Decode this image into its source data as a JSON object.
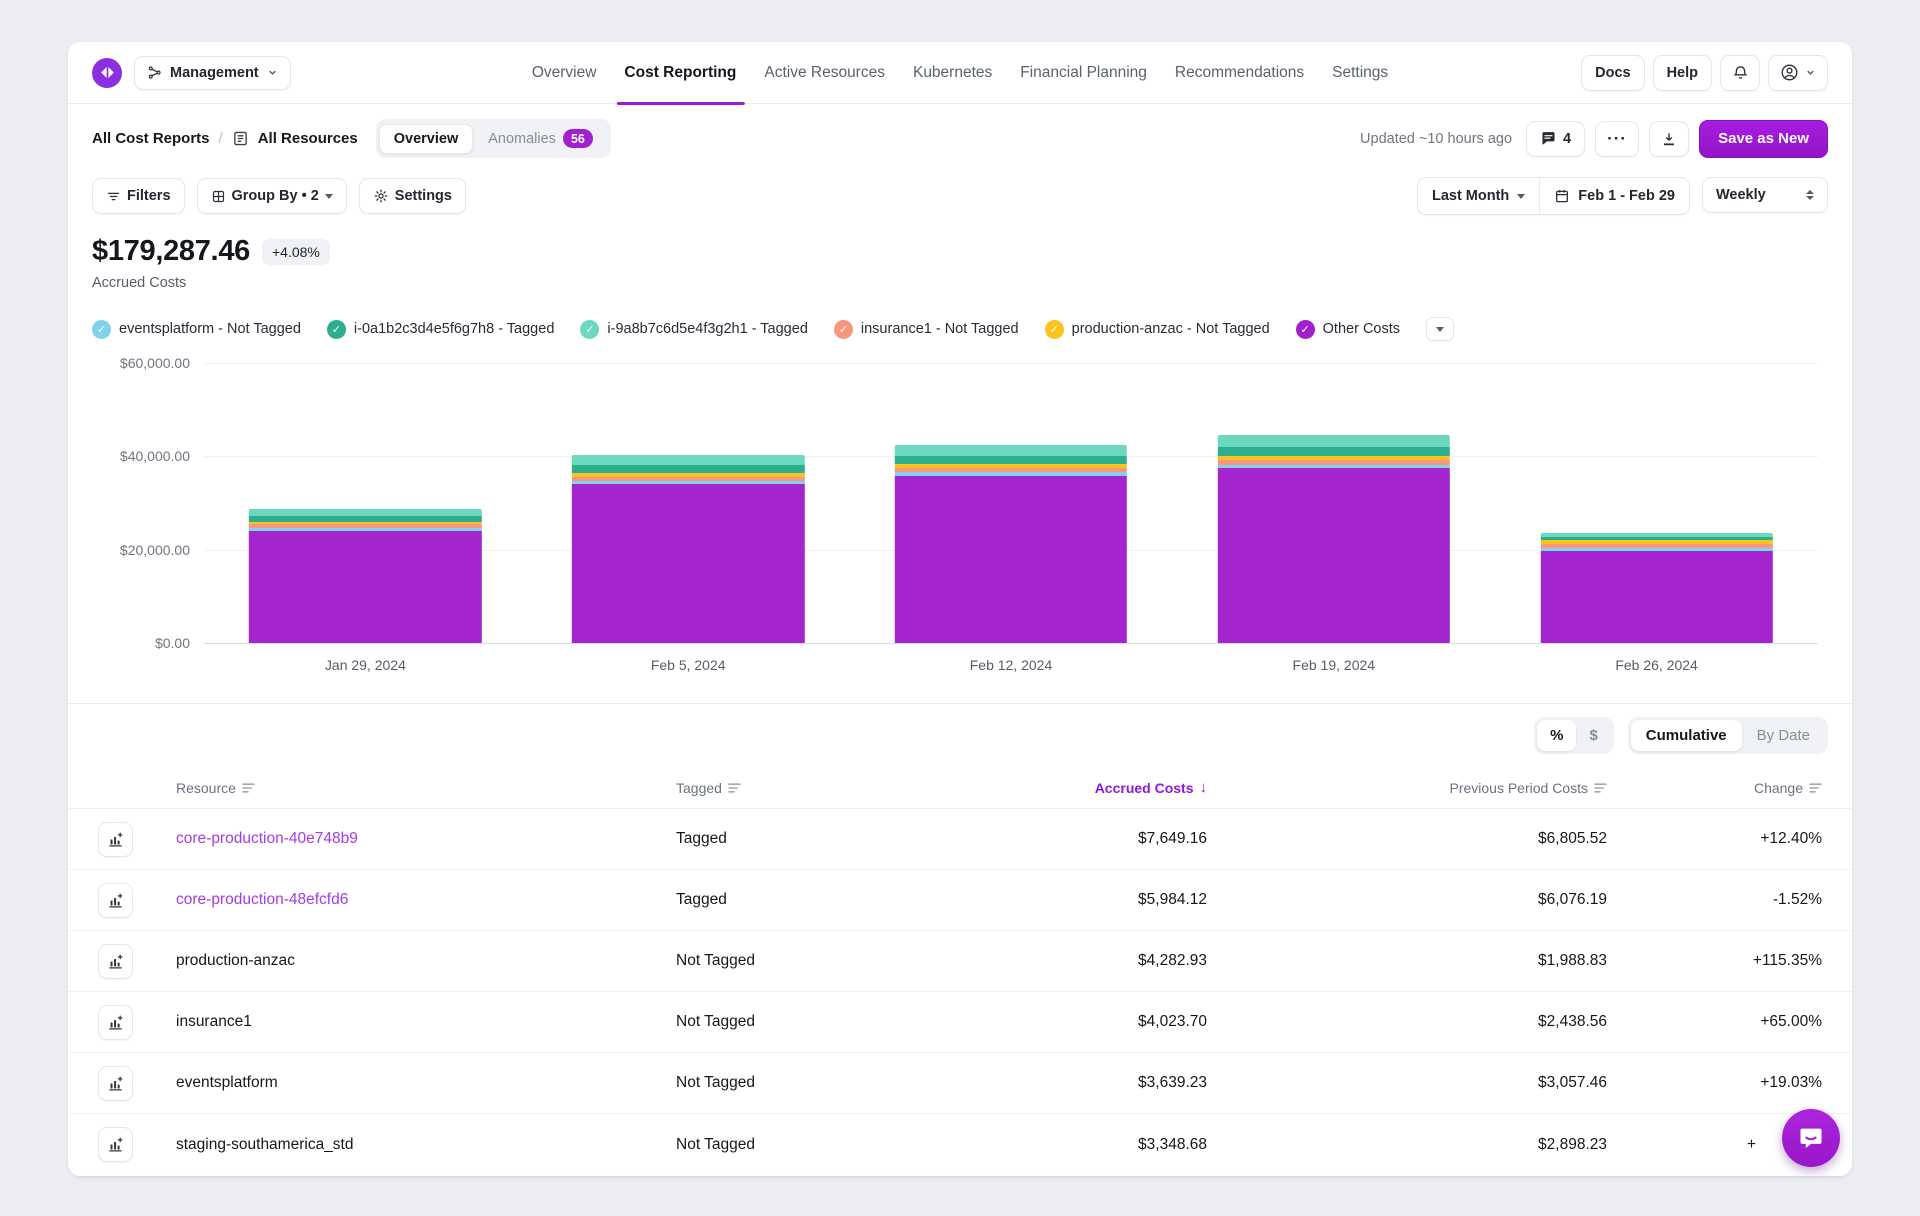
{
  "colors": {
    "accent": "#9C1BD9",
    "link": "#A43BE3",
    "badge": "#A21FD0",
    "logo": "#8C2FE0",
    "intercom": "#A51CD6"
  },
  "glyphs": {
    "check": "✓",
    "ellipsis": "···",
    "down_arrow": "↓",
    "slash": "/"
  },
  "header": {
    "workspace": "Management",
    "docs_label": "Docs",
    "help_label": "Help"
  },
  "nav": {
    "tabs": [
      {
        "label": "Overview",
        "active": false
      },
      {
        "label": "Cost Reporting",
        "active": true
      },
      {
        "label": "Active Resources",
        "active": false
      },
      {
        "label": "Kubernetes",
        "active": false
      },
      {
        "label": "Financial Planning",
        "active": false
      },
      {
        "label": "Recommendations",
        "active": false
      },
      {
        "label": "Settings",
        "active": false
      }
    ]
  },
  "report_bar": {
    "breadcrumb": [
      "All Cost Reports",
      "All Resources"
    ],
    "view_tabs": [
      {
        "label": "Overview",
        "active": true
      },
      {
        "label": "Anomalies",
        "active": false,
        "badge": "56"
      }
    ],
    "updated": "Updated ~10 hours ago",
    "comments_count": "4",
    "save_label": "Save as New"
  },
  "filter_bar": {
    "filters_label": "Filters",
    "group_by_label": "Group By • 2",
    "settings_label": "Settings",
    "period_label": "Last Month",
    "date_range": "Feb 1 - Feb 29",
    "granularity": "Weekly"
  },
  "summary": {
    "total": "$179,287.46",
    "delta": "+4.08%",
    "label": "Accrued Costs"
  },
  "legend": {
    "items": [
      {
        "label": "eventsplatform - Not Tagged",
        "color": "#7FD4EC"
      },
      {
        "label": "i-0a1b2c3d4e5f6g7h8 - Tagged",
        "color": "#2EAE90"
      },
      {
        "label": "i-9a8b7c6d5e4f3g2h1 - Tagged",
        "color": "#6CD8C0"
      },
      {
        "label": "insurance1 - Not Tagged",
        "color": "#F9967D"
      },
      {
        "label": "production-anzac - Not Tagged",
        "color": "#FCC31C"
      },
      {
        "label": "Other Costs",
        "color": "#A21FD0"
      }
    ]
  },
  "chart_data": {
    "type": "bar",
    "stacked": true,
    "x": [
      "Jan 29, 2024",
      "Feb 5, 2024",
      "Feb 12, 2024",
      "Feb 19, 2024",
      "Feb 26, 2024"
    ],
    "series": [
      {
        "name": "Other Costs",
        "color": "#A424CD",
        "values": [
          24000,
          34000,
          35800,
          37500,
          19700
        ]
      },
      {
        "name": "eventsplatform - Not Tagged",
        "color": "#7FD4EC",
        "values": [
          700,
          760,
          740,
          720,
          720
        ]
      },
      {
        "name": "insurance1 - Not Tagged",
        "color": "#F9967D",
        "values": [
          700,
          820,
          850,
          900,
          750
        ]
      },
      {
        "name": "production-anzac - Not Tagged",
        "color": "#FCC31C",
        "values": [
          600,
          900,
          950,
          1000,
          830
        ]
      },
      {
        "name": "i-0a1b2c3d4e5f6g7h8 - Tagged",
        "color": "#2EAE90",
        "values": [
          1300,
          1600,
          1700,
          1800,
          700
        ]
      },
      {
        "name": "i-9a8b7c6d5e4f3g2h1 - Tagged",
        "color": "#6CD8C0",
        "values": [
          1500,
          2300,
          2400,
          2600,
          900
        ]
      }
    ],
    "yticks": [
      "$60,000.00",
      "$40,000.00",
      "$20,000.00",
      "$0.00"
    ],
    "ylim": [
      0,
      60000
    ],
    "grid": true,
    "legend_position": "top",
    "title": "Accrued Costs by resource, weekly"
  },
  "toggles": {
    "percent": "%",
    "dollar": "$",
    "cumulative": "Cumulative",
    "by_date": "By Date"
  },
  "table": {
    "columns": [
      {
        "label": "Resource",
        "sort": "lines",
        "align": "left"
      },
      {
        "label": "Tagged",
        "sort": "lines",
        "align": "left"
      },
      {
        "label": "Accrued Costs",
        "sort": "arrow",
        "align": "right",
        "sorted": true
      },
      {
        "label": "Previous Period Costs",
        "sort": "lines",
        "align": "right"
      },
      {
        "label": "Change",
        "sort": "lines",
        "align": "right"
      }
    ],
    "rows": [
      {
        "resource": "core-production-40e748b9",
        "link": true,
        "tagged": "Tagged",
        "accrued": "$7,649.16",
        "previous": "$6,805.52",
        "change": "+12.40%"
      },
      {
        "resource": "core-production-48efcfd6",
        "link": true,
        "tagged": "Tagged",
        "accrued": "$5,984.12",
        "previous": "$6,076.19",
        "change": "-1.52%"
      },
      {
        "resource": "production-anzac",
        "link": false,
        "tagged": "Not Tagged",
        "accrued": "$4,282.93",
        "previous": "$1,988.83",
        "change": "+115.35%"
      },
      {
        "resource": "insurance1",
        "link": false,
        "tagged": "Not Tagged",
        "accrued": "$4,023.70",
        "previous": "$2,438.56",
        "change": "+65.00%"
      },
      {
        "resource": "eventsplatform",
        "link": false,
        "tagged": "Not Tagged",
        "accrued": "$3,639.23",
        "previous": "$3,057.46",
        "change": "+19.03%"
      },
      {
        "resource": "staging-southamerica_std",
        "link": false,
        "tagged": "Not Tagged",
        "accrued": "$3,348.68",
        "previous": "$2,898.23",
        "change": "+",
        "obscured": true
      }
    ]
  }
}
